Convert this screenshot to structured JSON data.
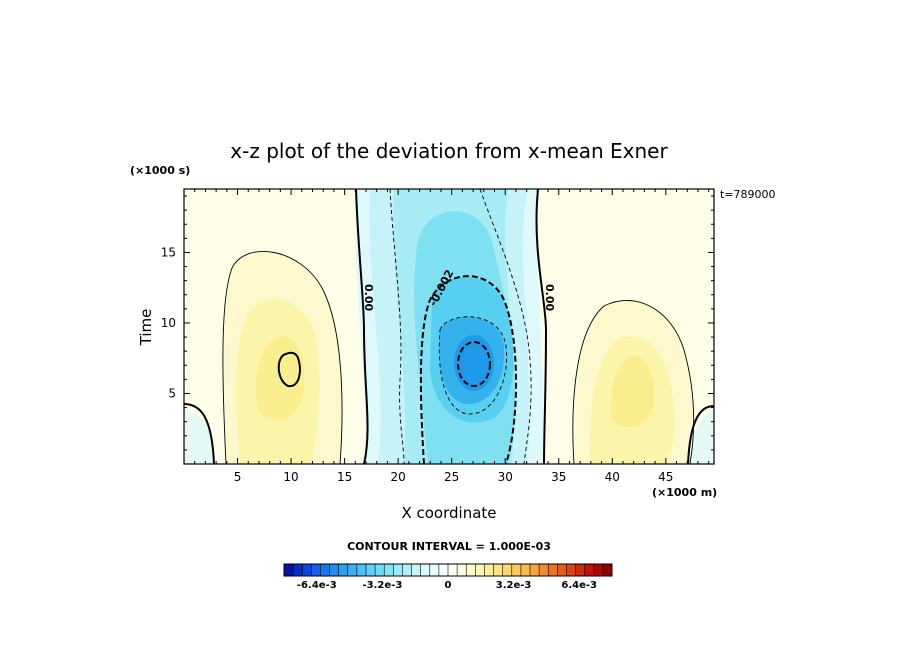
{
  "chart_data": {
    "type": "contour",
    "title": "x-z plot of the deviation from x-mean Exner",
    "xlabel": "X coordinate",
    "ylabel": "Time",
    "x_unit_label": "(×1000 m)",
    "y_unit_label": "(×1000 s)",
    "time_stamp": "t=789000",
    "xlim": [
      0,
      49.5
    ],
    "ylim": [
      0,
      19.5
    ],
    "x_ticks": [
      5,
      10,
      15,
      20,
      25,
      30,
      35,
      40,
      45
    ],
    "y_ticks": [
      5,
      10,
      15
    ],
    "contour_interval_text": "CONTOUR INTERVAL = 1.000E-03",
    "contour_labels": [
      {
        "text": "0.00",
        "x": 17.3,
        "y": 11.8
      },
      {
        "text": "-0.002",
        "x": 24.0,
        "y": 12.5
      },
      {
        "text": "0.00",
        "x": 34.2,
        "y": 11.8
      }
    ],
    "colorbar": {
      "min": -0.008,
      "max": 0.008,
      "tick_labels": [
        "-6.4e-3",
        "-3.2e-3",
        "0",
        "3.2e-3",
        "6.4e-3"
      ],
      "tick_values": [
        -0.0064,
        -0.0032,
        0,
        0.0032,
        0.0064
      ]
    },
    "field_features": [
      {
        "kind": "minimum",
        "x": 27.0,
        "y": 7.5,
        "value": -0.0045
      },
      {
        "kind": "maximum",
        "x": 9.8,
        "y": 7.0,
        "value": 0.0021
      },
      {
        "kind": "maximum",
        "x": 42.5,
        "y": 6.5,
        "value": 0.0017
      }
    ],
    "grid": false
  }
}
